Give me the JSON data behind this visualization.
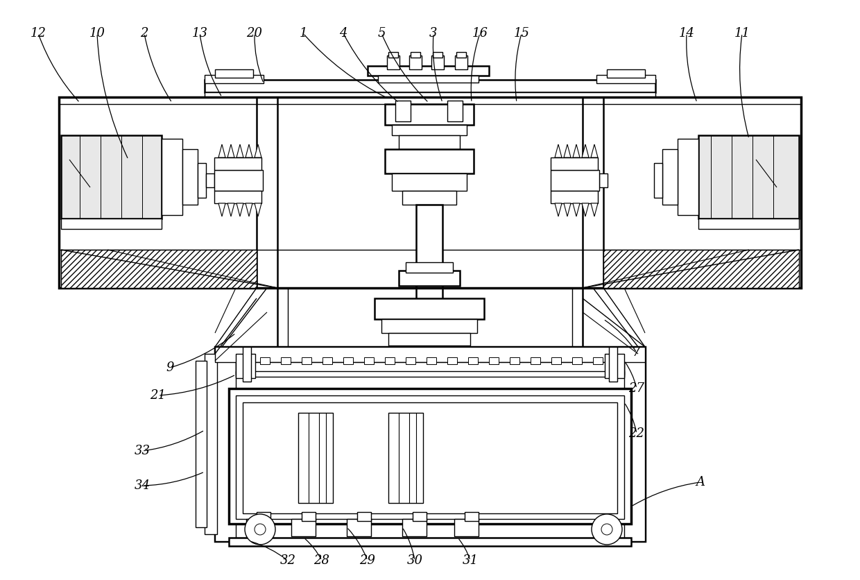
{
  "bg_color": "#ffffff",
  "lw": 1.0,
  "lw2": 1.8,
  "lw3": 2.5
}
